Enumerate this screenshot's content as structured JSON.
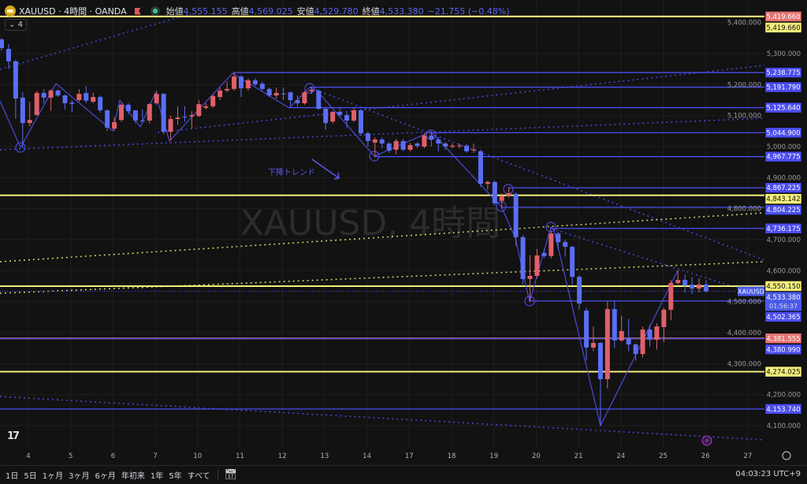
{
  "header": {
    "symbol_title": "XAUUSD · 4時間 · OANDA",
    "open_label": "始値",
    "open": "4,555.155",
    "high_label": "高値",
    "high": "4,569.025",
    "low_label": "安値",
    "low": "4,529.780",
    "close_label": "終値",
    "close": "4,533.380",
    "change": "−21.755 (−0.48%)",
    "indicators_collapsed": "4"
  },
  "watermark": "XAUUSD, 4時間",
  "annotation": "下降トレンド",
  "price_axis": [
    "5,400.000",
    "5,300.000",
    "5,200.000",
    "5,100.000",
    "5,000.000",
    "4,900.000",
    "4,800.000",
    "4,700.000",
    "4,600.000",
    "4,500.000",
    "4,400.000",
    "4,300.000",
    "4,200.000",
    "4,100.000"
  ],
  "price_tags": [
    {
      "label": "5,419.660",
      "price": 5419.66,
      "color": "red"
    },
    {
      "label": "5,419.660",
      "price": 5419.66,
      "color": "yellow"
    },
    {
      "label": "5,238.775",
      "price": 5238.775,
      "color": "blue"
    },
    {
      "label": "5,191.790",
      "price": 5191.79,
      "color": "blue"
    },
    {
      "label": "5,125.640",
      "price": 5125.64,
      "color": "blue"
    },
    {
      "label": "5,044.900",
      "price": 5044.9,
      "color": "blue"
    },
    {
      "label": "4,967.775",
      "price": 4967.775,
      "color": "blue"
    },
    {
      "label": "4,867.225",
      "price": 4867.225,
      "color": "blue"
    },
    {
      "label": "4,843.142",
      "price": 4843.142,
      "color": "yellow"
    },
    {
      "label": "4,804.225",
      "price": 4804.225,
      "color": "blue"
    },
    {
      "label": "4,736.175",
      "price": 4736.175,
      "color": "blue"
    },
    {
      "label": "4,550.150",
      "price": 4550.15,
      "color": "yellow"
    },
    {
      "label": "4,502.365",
      "price": 4502.365,
      "color": "blue"
    },
    {
      "label": "4,381.555",
      "price": 4381.555,
      "color": "red"
    },
    {
      "label": "4,380.990",
      "price": 4380.99,
      "color": "blue"
    },
    {
      "label": "4,274.025",
      "price": 4274.025,
      "color": "yellow"
    },
    {
      "label": "4,153.740",
      "price": 4153.74,
      "color": "blue"
    }
  ],
  "current_price": {
    "symbol": "XAUUSD",
    "label": "4,533.380",
    "price": 4533.38,
    "countdown": "01:56:37"
  },
  "time_axis": [
    "4",
    "5",
    "6",
    "7",
    "10",
    "11",
    "12",
    "13",
    "14",
    "17",
    "18",
    "19",
    "20",
    "21",
    "24",
    "25",
    "26",
    "27"
  ],
  "colors": {
    "background": "#121212",
    "up": "#e0606a",
    "down": "#5b6ef5",
    "blue_line": "#4b4ef0",
    "yellow_line": "#f2ee7a",
    "red_line": "#e57373"
  },
  "candles_ohlc": [
    [
      5346,
      5350,
      5310,
      5318
    ],
    [
      5315,
      5330,
      5250,
      5275
    ],
    [
      5275,
      5280,
      5090,
      5155
    ],
    [
      5158,
      5175,
      4995,
      5076
    ],
    [
      5076,
      5145,
      5065,
      5086
    ],
    [
      5102,
      5180,
      5100,
      5173
    ],
    [
      5173,
      5185,
      5140,
      5158
    ],
    [
      5158,
      5185,
      5115,
      5181
    ],
    [
      5181,
      5185,
      5160,
      5165
    ],
    [
      5165,
      5168,
      5120,
      5140
    ],
    [
      5142,
      5150,
      5110,
      5138
    ],
    [
      5150,
      5185,
      5145,
      5170
    ],
    [
      5173,
      5195,
      5140,
      5148
    ],
    [
      5145,
      5175,
      5140,
      5160
    ],
    [
      5160,
      5165,
      5110,
      5117
    ],
    [
      5117,
      5120,
      5050,
      5061
    ],
    [
      5058,
      5095,
      5050,
      5079
    ],
    [
      5086,
      5140,
      5080,
      5135
    ],
    [
      5135,
      5140,
      5105,
      5114
    ],
    [
      5117,
      5118,
      5075,
      5084
    ],
    [
      5084,
      5120,
      5075,
      5082
    ],
    [
      5084,
      5140,
      5075,
      5137
    ],
    [
      5140,
      5180,
      5135,
      5170
    ],
    [
      5170,
      5172,
      5040,
      5048
    ],
    [
      5048,
      5100,
      5020,
      5089
    ],
    [
      5089,
      5130,
      5070,
      5094
    ],
    [
      5097,
      5130,
      5080,
      5096
    ],
    [
      5097,
      5115,
      5060,
      5102
    ],
    [
      5099,
      5150,
      5095,
      5137
    ],
    [
      5125,
      5140,
      5120,
      5130
    ],
    [
      5130,
      5170,
      5125,
      5163
    ],
    [
      5160,
      5190,
      5150,
      5181
    ],
    [
      5181,
      5210,
      5175,
      5186
    ],
    [
      5186,
      5239,
      5180,
      5226
    ],
    [
      5226,
      5230,
      5160,
      5188
    ],
    [
      5188,
      5220,
      5180,
      5214
    ],
    [
      5214,
      5220,
      5195,
      5201
    ],
    [
      5203,
      5210,
      5180,
      5186
    ],
    [
      5186,
      5190,
      5160,
      5165
    ],
    [
      5165,
      5190,
      5155,
      5173
    ],
    [
      5171,
      5190,
      5150,
      5170
    ],
    [
      5175,
      5178,
      5130,
      5150
    ],
    [
      5150,
      5165,
      5130,
      5140
    ],
    [
      5140,
      5180,
      5135,
      5175
    ],
    [
      5178,
      5192,
      5170,
      5183
    ],
    [
      5180,
      5185,
      5118,
      5122
    ],
    [
      5122,
      5125,
      5055,
      5076
    ],
    [
      5081,
      5115,
      5075,
      5112
    ],
    [
      5112,
      5125,
      5095,
      5102
    ],
    [
      5102,
      5110,
      5060,
      5084
    ],
    [
      5084,
      5125,
      5080,
      5117
    ],
    [
      5117,
      5120,
      5035,
      5043
    ],
    [
      5043,
      5048,
      5000,
      5018
    ],
    [
      5013,
      5030,
      4967,
      5023
    ],
    [
      5023,
      5030,
      4995,
      5010
    ],
    [
      5010,
      5015,
      4980,
      4987
    ],
    [
      4990,
      5025,
      4975,
      5018
    ],
    [
      5018,
      5025,
      4985,
      4990
    ],
    [
      4990,
      5012,
      4985,
      5005
    ],
    [
      5010,
      5015,
      4995,
      5002
    ],
    [
      5000,
      5045,
      4995,
      5036
    ],
    [
      5036,
      5045,
      5000,
      5023
    ],
    [
      5023,
      5030,
      4985,
      5010
    ],
    [
      5010,
      5015,
      4990,
      5000
    ],
    [
      5000,
      5010,
      4995,
      5003
    ],
    [
      5002,
      5010,
      4995,
      5004
    ],
    [
      5003,
      5010,
      4980,
      4985
    ],
    [
      4988,
      5010,
      4980,
      4991
    ],
    [
      4985,
      4990,
      4870,
      4880
    ],
    [
      4880,
      4890,
      4860,
      4886
    ],
    [
      4886,
      4890,
      4810,
      4817
    ],
    [
      4825,
      4850,
      4800,
      4840
    ],
    [
      4842,
      4870,
      4835,
      4850
    ],
    [
      4848,
      4852,
      4680,
      4708
    ],
    [
      4708,
      4715,
      4555,
      4573
    ],
    [
      4573,
      4650,
      4500,
      4583
    ],
    [
      4583,
      4670,
      4575,
      4649
    ],
    [
      4657,
      4670,
      4640,
      4647
    ],
    [
      4647,
      4730,
      4640,
      4720
    ],
    [
      4720,
      4725,
      4670,
      4692
    ],
    [
      4692,
      4700,
      4645,
      4677
    ],
    [
      4677,
      4680,
      4555,
      4580
    ],
    [
      4580,
      4585,
      4475,
      4494
    ],
    [
      4471,
      4480,
      4310,
      4352
    ],
    [
      4352,
      4420,
      4340,
      4367
    ],
    [
      4367,
      4370,
      4100,
      4250
    ],
    [
      4250,
      4500,
      4220,
      4476
    ],
    [
      4476,
      4500,
      4350,
      4375
    ],
    [
      4375,
      4455,
      4370,
      4405
    ],
    [
      4382,
      4445,
      4340,
      4362
    ],
    [
      4362,
      4365,
      4310,
      4331
    ],
    [
      4331,
      4420,
      4320,
      4410
    ],
    [
      4410,
      4425,
      4355,
      4377
    ],
    [
      4377,
      4430,
      4345,
      4420
    ],
    [
      4418,
      4480,
      4370,
      4474
    ],
    [
      4474,
      4570,
      4440,
      4560
    ],
    [
      4560,
      4600,
      4555,
      4570
    ],
    [
      4570,
      4588,
      4530,
      4552
    ],
    [
      4555,
      4580,
      4525,
      4542
    ],
    [
      4542,
      4575,
      4530,
      4555
    ],
    [
      4555.155,
      4569.025,
      4529.78,
      4533.38
    ]
  ],
  "bottom": {
    "ranges": [
      "1日",
      "5日",
      "1ヶ月",
      "3ヶ月",
      "6ヶ月",
      "年初来",
      "1年",
      "5年",
      "すべて"
    ],
    "clock": "04:03:23 UTC+9"
  }
}
